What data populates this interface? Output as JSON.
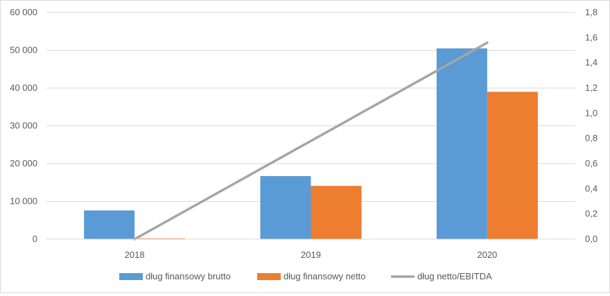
{
  "chart_data": {
    "type": "bar",
    "categories": [
      "2018",
      "2019",
      "2020"
    ],
    "series": [
      {
        "name": "dług finansowy brutto",
        "type": "bar",
        "axis": "left",
        "color": "#5b9bd5",
        "values": [
          7600,
          16700,
          50500
        ]
      },
      {
        "name": "dług finansowy netto",
        "type": "bar",
        "axis": "left",
        "color": "#ed7d31",
        "values": [
          200,
          14100,
          39000
        ]
      },
      {
        "name": "dług netto/EBITDA",
        "type": "line",
        "axis": "right",
        "color": "#a5a5a5",
        "values": [
          0.0,
          0.78,
          1.56
        ]
      }
    ],
    "y_left": {
      "min": 0,
      "max": 60000,
      "step": 10000,
      "tick_labels": [
        "0",
        "10 000",
        "20 000",
        "30 000",
        "40 000",
        "50 000",
        "60 000"
      ]
    },
    "y_right": {
      "min": 0,
      "max": 1.8,
      "step": 0.2,
      "tick_labels": [
        "0,0",
        "0,2",
        "0,4",
        "0,6",
        "0,8",
        "1,0",
        "1,2",
        "1,4",
        "1,6",
        "1,8"
      ]
    },
    "grid": true,
    "legend_position": "bottom"
  }
}
